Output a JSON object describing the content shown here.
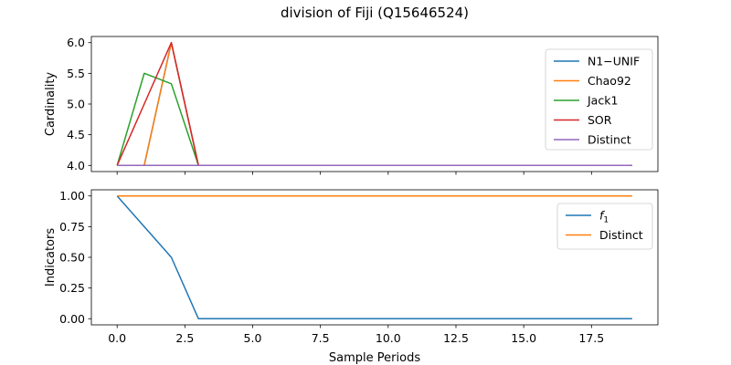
{
  "figure": {
    "title": "division of Fiji (Q15646524)"
  },
  "chart_data": [
    {
      "type": "line",
      "title": "",
      "xlabel": "",
      "ylabel": "Cardinality",
      "xlim": [
        -0.95,
        19.95
      ],
      "ylim": [
        3.9,
        6.1
      ],
      "x": [
        0,
        1,
        2,
        3,
        4,
        5,
        6,
        7,
        8,
        9,
        10,
        11,
        12,
        13,
        14,
        15,
        16,
        17,
        18,
        19
      ],
      "xticks": [
        0,
        2.5,
        5,
        7.5,
        10,
        12.5,
        15,
        17.5
      ],
      "xtick_labels": [],
      "yticks": [
        4.0,
        4.5,
        5.0,
        5.5,
        6.0
      ],
      "ytick_labels": [
        "4.0",
        "4.5",
        "5.0",
        "5.5",
        "6.0"
      ],
      "legend": "top-right",
      "series": [
        {
          "name": "N1−UNIF",
          "color": "#1f77b4",
          "values": [
            4,
            4,
            6,
            4,
            4,
            4,
            4,
            4,
            4,
            4,
            4,
            4,
            4,
            4,
            4,
            4,
            4,
            4,
            4,
            4
          ]
        },
        {
          "name": "Chao92",
          "color": "#ff7f0e",
          "values": [
            4,
            4,
            6,
            4,
            4,
            4,
            4,
            4,
            4,
            4,
            4,
            4,
            4,
            4,
            4,
            4,
            4,
            4,
            4,
            4
          ]
        },
        {
          "name": "Jack1",
          "color": "#2ca02c",
          "values": [
            4,
            5.5,
            5.33,
            4,
            4,
            4,
            4,
            4,
            4,
            4,
            4,
            4,
            4,
            4,
            4,
            4,
            4,
            4,
            4,
            4
          ]
        },
        {
          "name": "SOR",
          "color": "#d62728",
          "values": [
            4,
            5,
            6,
            4,
            4,
            4,
            4,
            4,
            4,
            4,
            4,
            4,
            4,
            4,
            4,
            4,
            4,
            4,
            4,
            4
          ]
        },
        {
          "name": "Distinct",
          "color": "#9467bd",
          "values": [
            4,
            4,
            4,
            4,
            4,
            4,
            4,
            4,
            4,
            4,
            4,
            4,
            4,
            4,
            4,
            4,
            4,
            4,
            4,
            4
          ]
        }
      ]
    },
    {
      "type": "line",
      "title": "",
      "xlabel": "Sample Periods",
      "ylabel": "Indicators",
      "xlim": [
        -0.95,
        19.95
      ],
      "ylim": [
        -0.05,
        1.05
      ],
      "x": [
        0,
        1,
        2,
        3,
        4,
        5,
        6,
        7,
        8,
        9,
        10,
        11,
        12,
        13,
        14,
        15,
        16,
        17,
        18,
        19
      ],
      "xticks": [
        0,
        2.5,
        5,
        7.5,
        10,
        12.5,
        15,
        17.5
      ],
      "xtick_labels": [
        "0.0",
        "2.5",
        "5.0",
        "7.5",
        "10.0",
        "12.5",
        "15.0",
        "17.5"
      ],
      "yticks": [
        0,
        0.25,
        0.5,
        0.75,
        1.0
      ],
      "ytick_labels": [
        "0.00",
        "0.25",
        "0.50",
        "0.75",
        "1.00"
      ],
      "legend": "top-right",
      "series": [
        {
          "name": "f",
          "name_subscript": "1",
          "color": "#1f77b4",
          "values": [
            1,
            0.75,
            0.5,
            0,
            0,
            0,
            0,
            0,
            0,
            0,
            0,
            0,
            0,
            0,
            0,
            0,
            0,
            0,
            0,
            0
          ]
        },
        {
          "name": "Distinct",
          "color": "#ff7f0e",
          "values": [
            1,
            1,
            1,
            1,
            1,
            1,
            1,
            1,
            1,
            1,
            1,
            1,
            1,
            1,
            1,
            1,
            1,
            1,
            1,
            1
          ]
        }
      ]
    }
  ]
}
